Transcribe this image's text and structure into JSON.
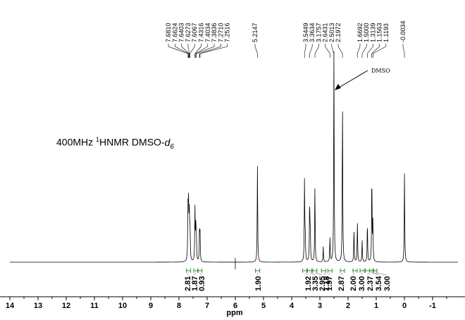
{
  "chart_data": {
    "type": "line",
    "title": "400MHz ¹HNMR DMSO-d6",
    "title_parts": {
      "prefix": "400MHz ",
      "sup": "1",
      "mid": "HNMR DMSO-",
      "italic": "d",
      "sub": "6"
    },
    "xlabel": "ppm",
    "ylabel": "",
    "xlim": [
      14.0,
      -1.9
    ],
    "x_direction": "reversed",
    "x_ticks": [
      "14",
      "13",
      "12",
      "11",
      "10",
      "9",
      "8",
      "7",
      "6",
      "5",
      "4",
      "3",
      "2",
      "1",
      "0",
      "-1"
    ],
    "grid": false,
    "peak_labels": [
      "7.6810",
      "7.6624",
      "7.6403",
      "7.6273",
      "7.6067",
      "7.4316",
      "7.4034",
      "7.3836",
      "7.2710",
      "7.2516",
      "5.2147",
      "3.5449",
      "3.3634",
      "3.1757",
      "2.6431",
      "2.5013",
      "2.1972",
      "1.6692",
      "1.5000",
      "1.3139",
      "1.1563",
      "1.1193",
      "-0.0034"
    ],
    "peaks": [
      {
        "ppm": 7.681,
        "height": 0.22
      },
      {
        "ppm": 7.662,
        "height": 0.24
      },
      {
        "ppm": 7.64,
        "height": 0.15
      },
      {
        "ppm": 7.627,
        "height": 0.14
      },
      {
        "ppm": 7.607,
        "height": 0.13
      },
      {
        "ppm": 7.432,
        "height": 0.24
      },
      {
        "ppm": 7.403,
        "height": 0.14
      },
      {
        "ppm": 7.384,
        "height": 0.12
      },
      {
        "ppm": 7.271,
        "height": 0.13
      },
      {
        "ppm": 7.252,
        "height": 0.12
      },
      {
        "ppm": 5.215,
        "height": 0.44
      },
      {
        "ppm": 3.545,
        "height": 0.37
      },
      {
        "ppm": 3.52,
        "height": 0.12
      },
      {
        "ppm": 3.363,
        "height": 0.27
      },
      {
        "ppm": 3.34,
        "height": 0.14
      },
      {
        "ppm": 3.176,
        "height": 0.35
      },
      {
        "ppm": 2.88,
        "height": 0.07
      },
      {
        "ppm": 2.643,
        "height": 0.11
      },
      {
        "ppm": 2.501,
        "height": 0.98
      },
      {
        "ppm": 2.197,
        "height": 0.74
      },
      {
        "ppm": 1.79,
        "height": 0.15
      },
      {
        "ppm": 1.669,
        "height": 0.18
      },
      {
        "ppm": 1.5,
        "height": 0.1
      },
      {
        "ppm": 1.314,
        "height": 0.18
      },
      {
        "ppm": 1.156,
        "height": 0.4
      },
      {
        "ppm": 1.119,
        "height": 0.18
      },
      {
        "ppm": -0.003,
        "height": 0.41
      }
    ],
    "integrals": [
      {
        "ppm": 7.66,
        "value": "2.81"
      },
      {
        "ppm": 7.4,
        "value": "1.87"
      },
      {
        "ppm": 7.26,
        "value": "0.93"
      },
      {
        "ppm": 5.21,
        "value": "1.90"
      },
      {
        "ppm": 3.54,
        "value": "1.92"
      },
      {
        "ppm": 3.36,
        "value": "3.35"
      },
      {
        "ppm": 3.18,
        "value": "2.95"
      },
      {
        "ppm": 2.87,
        "value": "1.18"
      },
      {
        "ppm": 2.64,
        "value": "1.97"
      },
      {
        "ppm": 2.2,
        "value": "2.87"
      },
      {
        "ppm": 1.75,
        "value": "2.00"
      },
      {
        "ppm": 1.5,
        "value": "3.00"
      },
      {
        "ppm": 1.31,
        "value": "2.37"
      },
      {
        "ppm": 1.16,
        "value": "3.54"
      },
      {
        "ppm": 1.05,
        "value": "3.00"
      }
    ],
    "annotations": [
      {
        "text": "DMSO",
        "points_to_ppm": 2.501
      }
    ]
  }
}
